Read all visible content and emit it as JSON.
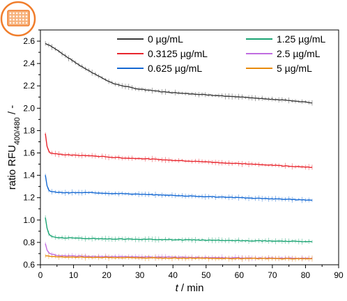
{
  "plate_icon": {
    "name": "microplate-icon",
    "ring_color": "#f07d2b",
    "plate_color": "#f07d2b"
  },
  "chart_data": {
    "type": "line",
    "xlabel": {
      "var": "t",
      "sep": " / ",
      "unit": "min"
    },
    "ylabel": {
      "prefix": "ratio RFU",
      "sub": "400/480",
      "suffix": " / -"
    },
    "xlim": [
      0,
      90
    ],
    "ylim": [
      0.6,
      2.7
    ],
    "xticks": [
      "0",
      "10",
      "20",
      "30",
      "40",
      "50",
      "60",
      "70",
      "80",
      "90"
    ],
    "yticks": [
      "0.6",
      "0.8",
      "1.0",
      "1.2",
      "1.4",
      "1.6",
      "1.8",
      "2.0",
      "2.2",
      "2.4",
      "2.6"
    ],
    "grid": false,
    "legend_position": "top-right",
    "series": [
      {
        "name": "0 µg/mL",
        "color": "#3a3a3a",
        "x": [
          1.5,
          3,
          5,
          8,
          10,
          12,
          15,
          18,
          20,
          22,
          25,
          28,
          30,
          33,
          36,
          40,
          45,
          50,
          55,
          60,
          65,
          70,
          75,
          80,
          82
        ],
        "y": [
          2.58,
          2.56,
          2.52,
          2.46,
          2.42,
          2.38,
          2.33,
          2.28,
          2.25,
          2.22,
          2.2,
          2.18,
          2.17,
          2.16,
          2.15,
          2.14,
          2.13,
          2.12,
          2.11,
          2.1,
          2.09,
          2.08,
          2.07,
          2.055,
          2.05
        ]
      },
      {
        "name": "0.3125 µg/mL",
        "color": "#e8262e",
        "x": [
          1.5,
          2,
          2.5,
          3,
          4,
          5,
          7,
          10,
          15,
          20,
          25,
          30,
          40,
          50,
          60,
          70,
          80,
          82
        ],
        "y": [
          1.77,
          1.66,
          1.62,
          1.6,
          1.595,
          1.59,
          1.585,
          1.58,
          1.575,
          1.565,
          1.555,
          1.55,
          1.535,
          1.52,
          1.505,
          1.49,
          1.475,
          1.47
        ]
      },
      {
        "name": "0.625 µg/mL",
        "color": "#1468d2",
        "x": [
          1.5,
          2,
          2.5,
          3,
          4,
          5,
          7,
          10,
          15,
          20,
          25,
          30,
          40,
          50,
          60,
          70,
          80,
          82
        ],
        "y": [
          1.4,
          1.31,
          1.27,
          1.255,
          1.25,
          1.248,
          1.245,
          1.245,
          1.245,
          1.24,
          1.235,
          1.23,
          1.22,
          1.21,
          1.2,
          1.19,
          1.18,
          1.178
        ]
      },
      {
        "name": "1.25 µg/mL",
        "color": "#1aa473",
        "x": [
          1.5,
          2,
          2.5,
          3,
          4,
          5,
          7,
          10,
          15,
          20,
          25,
          30,
          40,
          50,
          60,
          70,
          80,
          82
        ],
        "y": [
          1.02,
          0.93,
          0.88,
          0.86,
          0.85,
          0.845,
          0.84,
          0.838,
          0.835,
          0.832,
          0.83,
          0.828,
          0.824,
          0.82,
          0.816,
          0.812,
          0.808,
          0.806
        ]
      },
      {
        "name": "2.5 µg/mL",
        "color": "#c06ce0",
        "x": [
          1.5,
          2,
          2.5,
          3,
          4,
          5,
          7,
          10,
          15,
          20,
          30,
          40,
          50,
          60,
          70,
          80,
          82
        ],
        "y": [
          0.79,
          0.73,
          0.71,
          0.7,
          0.69,
          0.685,
          0.68,
          0.678,
          0.675,
          0.673,
          0.67,
          0.668,
          0.665,
          0.662,
          0.66,
          0.658,
          0.657
        ]
      },
      {
        "name": "5 µg/mL",
        "color": "#e88a0c",
        "x": [
          1.5,
          5,
          10,
          20,
          30,
          40,
          50,
          60,
          70,
          80,
          82
        ],
        "y": [
          0.68,
          0.672,
          0.668,
          0.665,
          0.662,
          0.66,
          0.658,
          0.656,
          0.655,
          0.654,
          0.654
        ]
      }
    ]
  }
}
